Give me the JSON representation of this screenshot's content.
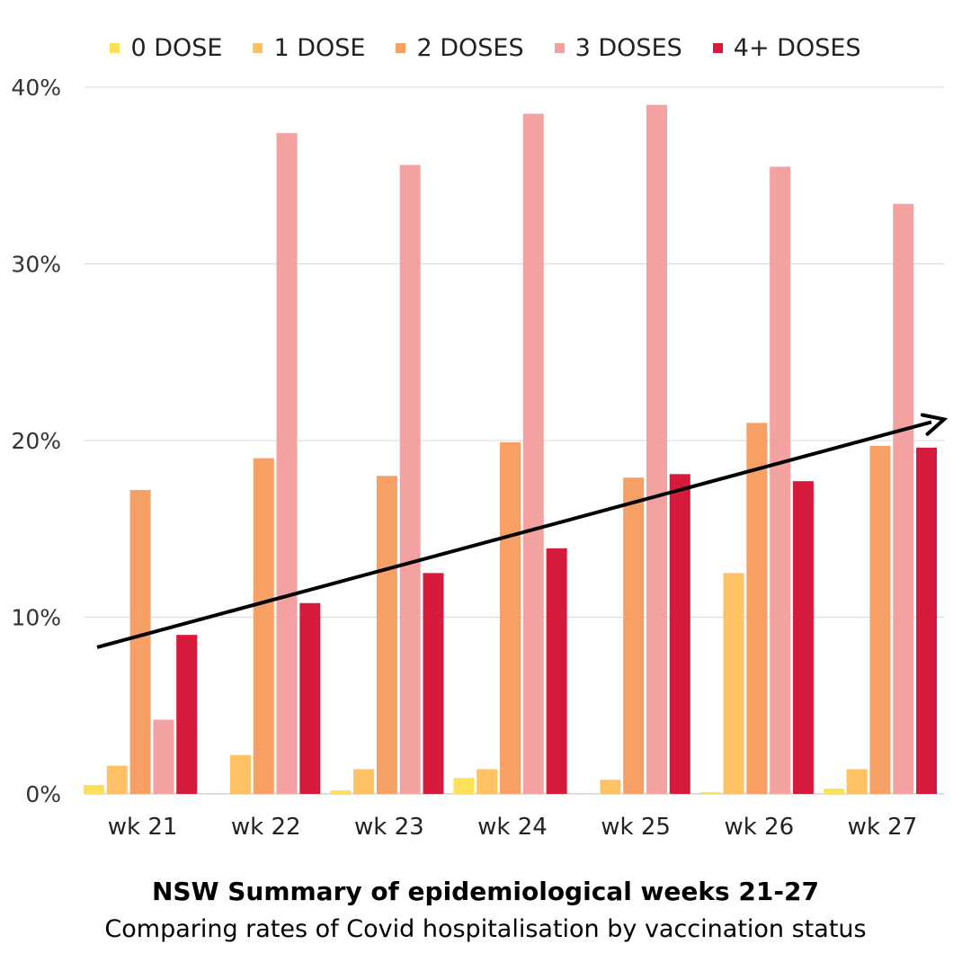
{
  "chart_data": {
    "type": "bar",
    "title": "NSW Summary of epidemiological weeks 21-27",
    "subtitle": "Comparing rates of Covid hospitalisation by vaccination status",
    "categories": [
      "wk 21",
      "wk 22",
      "wk 23",
      "wk 24",
      "wk 25",
      "wk 26",
      "wk 27"
    ],
    "series": [
      {
        "name": "0 DOSE",
        "color": "#fde059",
        "values": [
          0.5,
          0,
          0.2,
          0.9,
          0,
          0.1,
          0.3
        ]
      },
      {
        "name": "1 DOSE",
        "color": "#fec265",
        "values": [
          1.6,
          2.2,
          1.4,
          1.4,
          0.8,
          12.5,
          1.4
        ]
      },
      {
        "name": "2 DOSES",
        "color": "#f7a065",
        "values": [
          17.2,
          19.0,
          18.0,
          19.9,
          17.9,
          21.0,
          19.7
        ]
      },
      {
        "name": "3 DOSES",
        "color": "#f4a1a2",
        "values": [
          4.2,
          37.4,
          35.6,
          38.5,
          39.0,
          35.5,
          33.4
        ]
      },
      {
        "name": "4+ DOSES",
        "color": "#d61a3c",
        "values": [
          9.0,
          10.8,
          12.5,
          13.9,
          18.1,
          17.7,
          19.6
        ]
      }
    ],
    "ylim": [
      0,
      40
    ],
    "yticks": [
      "0%",
      "10%",
      "20%",
      "30%",
      "40%"
    ],
    "ytick_values": [
      0,
      10,
      20,
      30,
      40
    ],
    "grid": true,
    "legend_position": "top-center",
    "annotations": [
      {
        "type": "trend-arrow",
        "start_y": 8.3,
        "end_y": 21.2,
        "color": "#000000"
      }
    ]
  }
}
